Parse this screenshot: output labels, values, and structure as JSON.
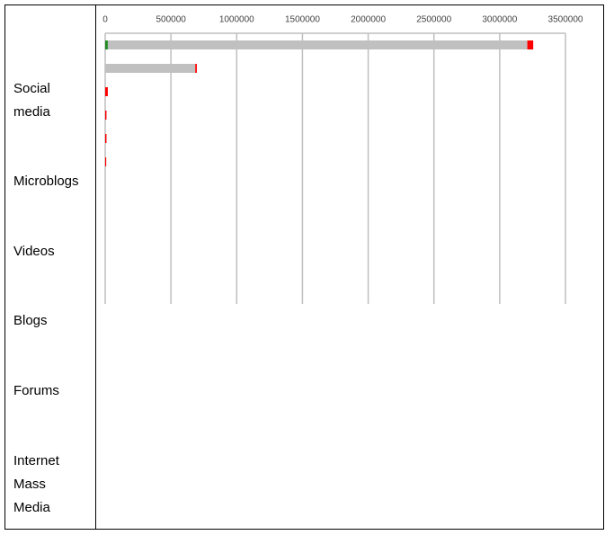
{
  "chart_data": {
    "type": "bar",
    "orientation": "horizontal",
    "stacked": true,
    "categories": [
      "Social media",
      "Microblogs",
      "Videos",
      "Blogs",
      "Forums",
      "Internet Mass Media"
    ],
    "series": [
      {
        "color": "#1e8c1e",
        "values": [
          20000,
          0,
          0,
          0,
          0,
          0
        ]
      },
      {
        "color": "#c0c0c0",
        "values": [
          3190000,
          685000,
          0,
          0,
          0,
          0
        ]
      },
      {
        "color": "#ff0000",
        "values": [
          45000,
          12000,
          20000,
          10000,
          10000,
          8000
        ]
      }
    ],
    "xlim": [
      0,
      3500000
    ],
    "xticks": [
      0,
      500000,
      1000000,
      1500000,
      2000000,
      2500000,
      3000000,
      3500000
    ],
    "grid": true
  }
}
